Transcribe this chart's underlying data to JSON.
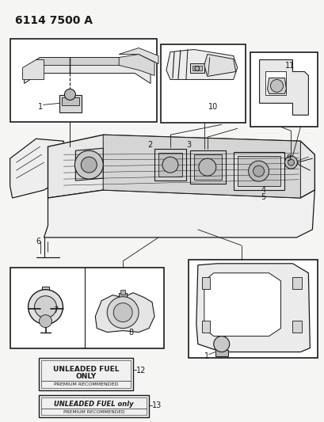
{
  "title": "6114 7500 A",
  "bg_color": "#f5f5f3",
  "line_color": "#1a1a1a",
  "title_fontsize": 10,
  "label_fontsize": 7,
  "fig_width": 4.1,
  "fig_height": 5.33,
  "dpi": 100,
  "label12_text_line1": "UNLEADED FUEL",
  "label12_text_line2": "ONLY",
  "label12_text_line3": "PREMIUM RECOMMENDED",
  "label13_text_line1": "UNLEADED FUEL only",
  "label13_text_line2": "PREMIUM RECOMMENDED"
}
